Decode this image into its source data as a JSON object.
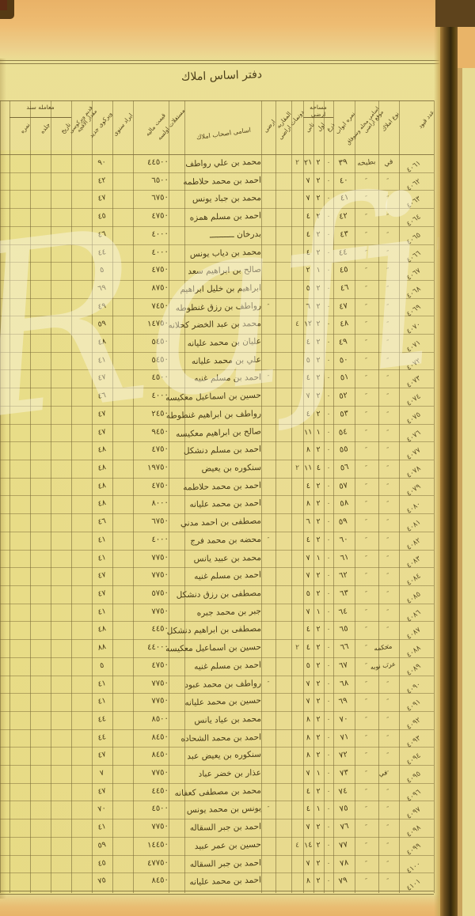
{
  "page": {
    "title": "دفتر اساس املاك",
    "watermark_text": "Rafii"
  },
  "colors": {
    "paper": "#ebe096",
    "paper_edge_orange": "#e9b267",
    "ink": "#493c17",
    "grid_line": "#7a6a38",
    "binding_dark": "#33260b",
    "corner_dark": "#553a14",
    "next_page_paper": "#e7db93"
  },
  "table": {
    "ditto_mark": "″",
    "headers": {
      "record": "عدد قيود",
      "type": "نوع املاك",
      "quarter_l1": "اسامی محله وسوقاق",
      "quarter_l2": "موقع اراضی",
      "door": "نمره ابواب",
      "area_group": "مساحه ارضي",
      "area_sub1": "ذرع",
      "area_sub2": "اول",
      "area_sub3": "ثانی",
      "donum": "دونمات اراضی",
      "muqata": "المقاربه",
      "arazi": "ارضی",
      "owner": "اسامی اصحاب املاك",
      "mustaghal": "مستغلات اولسه",
      "price": "قيمت ماليه",
      "irad": "ايراد سنوی",
      "vergi_new": "ويرکوی جديد",
      "vergi_old_l1": "قديم ويرکوسی",
      "vergi_old_l2": "مقدار الاقچه",
      "sened_group": "معامله سند",
      "sened_sub1": "تاريخ",
      "sened_sub2": "جلده",
      "sened_sub3": "نمره"
    },
    "rows": [
      {
        "r": "٤٠٦١",
        "t": "في",
        "q": "بطيخه",
        "d": "٣٩",
        "m1": "٠",
        "m2": "٢",
        "m3": "٢١",
        "dn": "٢",
        "o": "محمد بن علي رواطف",
        "p": "٤٤٥٠٠",
        "v": "٩٠"
      },
      {
        "r": "٤٠٦٢",
        "d": "٤٠",
        "m1": "٠",
        "m2": "٢",
        "m3": "٧",
        "o": "احمد بن محمد حلاطمه",
        "p": "٦٥٠٠",
        "v": "٤٢"
      },
      {
        "r": "٤٠٦٣",
        "d": "٤١",
        "m1": "٠",
        "m2": "٢",
        "m3": "٧",
        "o": "محمد بن جباد يونس",
        "p": "٦٧٥٠",
        "v": "٤٧"
      },
      {
        "r": "٤٠٦٤",
        "d": "٤٢",
        "m1": "٠",
        "m2": "٢",
        "m3": "٤",
        "o": "احمد بن مسلم همزه",
        "p": "٤٧٥٠",
        "v": "٤٥"
      },
      {
        "r": "٤٠٦٥",
        "d": "٤٣",
        "m1": "٠",
        "m2": "٢",
        "m3": "٤",
        "o": "بدرخان ــــــــــ",
        "p": "٤٠٠٠",
        "v": "٤٦"
      },
      {
        "r": "٤٠٦٦",
        "d": "٤٤",
        "m1": "٠",
        "m2": "٢",
        "m3": "٤",
        "o": "محمد بن دياب يونس",
        "p": "٤٠٠٠",
        "v": "٤٤"
      },
      {
        "r": "٤٠٦٧",
        "d": "٤٥",
        "m1": "٠",
        "m2": "١",
        "m3": "٢",
        "o": "صالح بن ابراهيم سعد",
        "p": "٤٧٥٠",
        "v": "٥"
      },
      {
        "r": "٤٠٦٨",
        "d": "٤٦",
        "m1": "٠",
        "m2": "٢",
        "m3": "٥",
        "o": "ابراهيم بن خليل ابراهيم",
        "p": "٨٧٥٠",
        "v": "٦٩"
      },
      {
        "r": "٤٠٦٩",
        "d": "٤٧",
        "m1": "٠",
        "m2": "٢",
        "m3": "٦",
        "az": "″",
        "o": "رواطف بن رزق غنطوطه",
        "p": "٧٤٥٠",
        "v": "٤٩"
      },
      {
        "r": "٤٠٧٠",
        "d": "٤٨",
        "m1": "٠",
        "m2": "٢",
        "m3": "١٢",
        "dn": "٤",
        "o": "محمد بن عبد الخضر كحلانه",
        "p": "١٤٧٥٠",
        "v": "٥٩"
      },
      {
        "r": "٤٠٧١",
        "d": "٤٩",
        "m1": "٠",
        "m2": "٢",
        "m3": "٤",
        "o": "عليان بن محمد عليانه",
        "p": "٥٤٥٠",
        "v": "٤٨"
      },
      {
        "r": "٤٠٧٢",
        "d": "٥٠",
        "m1": "٠",
        "m2": "٢",
        "m3": "٥",
        "o": "علي بن محمد عليانه",
        "p": "٥٤٥٠",
        "v": "٤١"
      },
      {
        "r": "٤٠٧٣",
        "d": "٥١",
        "m1": "٠",
        "m2": "٢",
        "m3": "٤",
        "az": "″",
        "o": "احمد بن مسلم غنيه",
        "p": "٤٥٠٠",
        "v": "٤٧"
      },
      {
        "r": "٤٠٧٤",
        "d": "٥٢",
        "m1": "٠",
        "m2": "٢",
        "m3": "٧",
        "o": "حسين بن اسماعيل معكيسه",
        "p": "٤٠٠٠",
        "v": "٤٦"
      },
      {
        "r": "٤٠٧٥",
        "d": "٥٣",
        "m1": "٠",
        "m2": "٢",
        "m3": "٤",
        "o": "رواطف بن ابراهيم غنطوطه",
        "p": "٢٤٥٠",
        "v": "٤٧"
      },
      {
        "r": "٤٠٧٦",
        "d": "٥٤",
        "m1": "٠",
        "m2": "١",
        "m3": "١١",
        "o": "صالح بن ابراهيم معكيسه",
        "p": "٩٤٥٠",
        "v": "٤٧"
      },
      {
        "r": "٤٠٧٧",
        "d": "٥٥",
        "m1": "٠",
        "m2": "٢",
        "m3": "٨",
        "o": "احمد بن مسلم دنشكل",
        "p": "٤٧٥٠",
        "v": "٤٨"
      },
      {
        "r": "٤٠٧٨",
        "d": "٥٦",
        "m1": "٠",
        "m2": "٤",
        "m3": "١١",
        "dn": "٢",
        "o": "سنكوره بن يعيض",
        "p": "١٩٧٥٠",
        "v": "٤٨"
      },
      {
        "r": "٤٠٧٩",
        "d": "٥٧",
        "m1": "٠",
        "m2": "٢",
        "m3": "٤",
        "o": "احمد بن محمد حلاطمه",
        "p": "٤٧٥٠",
        "v": "٤٨"
      },
      {
        "r": "٤٠٨٠",
        "d": "٥٨",
        "m1": "٠",
        "m2": "٢",
        "m3": "٨",
        "o": "احمد بن محمد عليانه",
        "p": "٨٠٠٠",
        "v": "٤٨"
      },
      {
        "r": "٤٠٨١",
        "d": "٥٩",
        "m1": "٠",
        "m2": "٢",
        "m3": "٦",
        "o": "مصطفى بن احمد مدني",
        "p": "٦٧٥٠",
        "v": "٤٦"
      },
      {
        "r": "٤٠٨٢",
        "d": "٦٠",
        "m1": "٠",
        "m2": "٢",
        "m3": "٤",
        "az": "″",
        "o": "محضه بن محمد فرج",
        "p": "٤٠٠٠",
        "v": "٤١"
      },
      {
        "r": "٤٠٨٣",
        "d": "٦١",
        "m1": "٠",
        "m2": "١",
        "m3": "٧",
        "o": "محمد بن عبيد يانس",
        "p": "٧٧٥٠",
        "v": "٤١"
      },
      {
        "r": "٤٠٨٤",
        "d": "٦٢",
        "m1": "٠",
        "m2": "٢",
        "m3": "٧",
        "o": "احمد بن مسلم غنيه",
        "p": "٧٧٥٠",
        "v": "٤٧"
      },
      {
        "r": "٤٠٨٥",
        "d": "٦٣",
        "m1": "٠",
        "m2": "٢",
        "m3": "٥",
        "o": "مصطفى بن رزق دنشكل",
        "p": "٥٧٥٠",
        "v": "٤٧"
      },
      {
        "r": "٤٠٨٦",
        "d": "٦٤",
        "m1": "٠",
        "m2": "١",
        "m3": "٧",
        "o": "جبر بن محمد جبره",
        "p": "٧٧٥٠",
        "v": "٤١"
      },
      {
        "r": "٤٠٨٧",
        "d": "٦٥",
        "m1": "٠",
        "m2": "٢",
        "m3": "٤",
        "o": "مصطفى بن ابراهيم دنشكل",
        "p": "٤٤٥٠",
        "v": "٤٨"
      },
      {
        "r": "٤٠٨٨",
        "n": "محكمه",
        "d": "٦٦",
        "m1": "٠",
        "m2": "٢",
        "m3": "٤",
        "dn": "٢",
        "o": "حسين بن اسماعيل معكيسه",
        "p": "٤٤٠٠٠",
        "v": "٨٨"
      },
      {
        "r": "٤٠٨٩",
        "n": "عرب نوبه",
        "d": "٦٧",
        "m1": "٠",
        "m2": "٢",
        "m3": "٥",
        "o": "احمد بن مسلم غنيه",
        "p": "٤٧٥٠",
        "v": "٥"
      },
      {
        "r": "٤٠٩٠",
        "d": "٦٨",
        "m1": "٠",
        "m2": "٢",
        "m3": "٧",
        "az": "″",
        "o": "رواطف بن محمد عبود",
        "p": "٧٧٥٠",
        "v": "٤١"
      },
      {
        "r": "٤٠٩١",
        "d": "٦٩",
        "m1": "٠",
        "m2": "٢",
        "m3": "٧",
        "o": "حسين بن محمد عليانه",
        "p": "٧٧٥٠",
        "v": "٤١"
      },
      {
        "r": "٤٠٩٢",
        "d": "٧٠",
        "m1": "٠",
        "m2": "٢",
        "m3": "٨",
        "o": "محمد بن عياد يانس",
        "p": "٨٥٠٠",
        "v": "٤٤"
      },
      {
        "r": "٤٠٩٣",
        "d": "٧١",
        "m1": "٠",
        "m2": "٢",
        "m3": "٨",
        "o": "احمد بن محمد الشحاده",
        "p": "٨٤٥٠",
        "v": "٤٤"
      },
      {
        "r": "٤٠٩٤",
        "d": "٧٢",
        "m1": "٠",
        "m2": "٢",
        "m3": "٨",
        "o": "سنكوره بن يعيض عبد",
        "p": "٨٤٥٠",
        "v": "٤٧"
      },
      {
        "r": "٤٠٩٥",
        "n": "في",
        "d": "٧٣",
        "m1": "٠",
        "m2": "١",
        "m3": "٧",
        "o": "عذار بن خضر عباد",
        "p": "٧٧٥٠",
        "v": "٧"
      },
      {
        "r": "٤٠٩٦",
        "d": "٧٤",
        "m1": "٠",
        "m2": "٢",
        "m3": "٤",
        "o": "محمد بن مصطفى كعفانه",
        "p": "٤٤٥٠",
        "v": "٤٧"
      },
      {
        "r": "٤٠٩٧",
        "d": "٧٥",
        "m1": "٠",
        "m2": "١",
        "m3": "٤",
        "az": "″",
        "o": "يونس بن محمد يونس",
        "p": "٤٥٠٠",
        "v": "٧٠"
      },
      {
        "r": "٤٠٩٨",
        "d": "٧٦",
        "m1": "٠",
        "m2": "٢",
        "m3": "٧",
        "o": "احمد بن جبر السقاله",
        "p": "٧٧٥٠",
        "v": "٤١"
      },
      {
        "r": "٤٠٩٩",
        "d": "٧٧",
        "m1": "٠",
        "m2": "٢",
        "m3": "١٤",
        "dn": "٤",
        "o": "حسين بن عمر عبيد",
        "p": "١٤٤٥٠",
        "v": "٥٩"
      },
      {
        "r": "٤١٠٠",
        "d": "٧٨",
        "m1": "٠",
        "m2": "٢",
        "m3": "٧",
        "o": "احمد بن جبر السقاله",
        "p": "٤٧٧٥٠",
        "v": "٤٥"
      },
      {
        "r": "٤١٠١",
        "d": "٧٩",
        "m1": "٠",
        "m2": "٢",
        "m3": "٨",
        "o": "احمد بن محمد عليانه",
        "p": "٨٤٥٠",
        "v": "٧٥"
      }
    ]
  }
}
